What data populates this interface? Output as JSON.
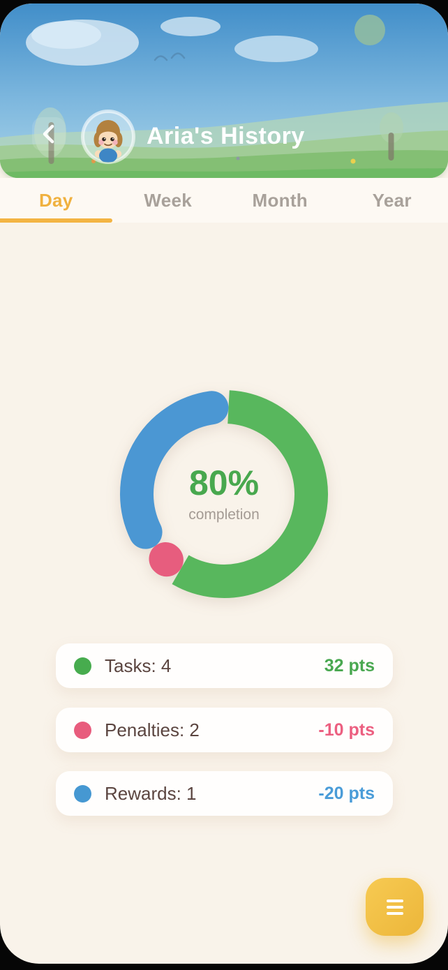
{
  "header": {
    "title": "Aria's History",
    "back_icon": "chevron-left",
    "avatar": "child-avatar"
  },
  "tabs": {
    "items": [
      {
        "label": "Day",
        "active": true
      },
      {
        "label": "Week",
        "active": false
      },
      {
        "label": "Month",
        "active": false
      },
      {
        "label": "Year",
        "active": false
      }
    ],
    "active_color": "#f0b13f",
    "inactive_color": "#a8a19a"
  },
  "chart_data": {
    "type": "donut",
    "center_value": "80%",
    "center_label": "completion",
    "completion_pct": 80,
    "center_value_color": "#48a84e",
    "center_label_color": "#a49b94",
    "segments": [
      {
        "name": "tasks",
        "label": "Tasks",
        "count": 4,
        "points": 32,
        "color": "#58b75d",
        "start_deg": 3,
        "end_deg": 210,
        "share_pct": 57.5
      },
      {
        "name": "penalties",
        "label": "Penalties",
        "count": 2,
        "points": -10,
        "color": "#e75d7e",
        "start_deg": 210,
        "end_deg": 233,
        "share_pct": 6.4
      },
      {
        "name": "rewards",
        "label": "Rewards",
        "count": 1,
        "points": -20,
        "color": "#4b97d3",
        "start_deg": 233,
        "end_deg": 363,
        "share_pct": 36.1
      }
    ]
  },
  "legend": {
    "items": [
      {
        "label": "Tasks: 4",
        "points": "32 pts",
        "dot_color": "#47ac4e",
        "points_color": "#49a850"
      },
      {
        "label": "Penalties: 2",
        "points": "-10 pts",
        "dot_color": "#e85c7d",
        "points_color": "#ec5f80"
      },
      {
        "label": "Rewards: 1",
        "points": "-20 pts",
        "dot_color": "#4698d2",
        "points_color": "#4a9cd8"
      }
    ]
  },
  "fab": {
    "icon": "menu",
    "color": "#eebb40"
  }
}
